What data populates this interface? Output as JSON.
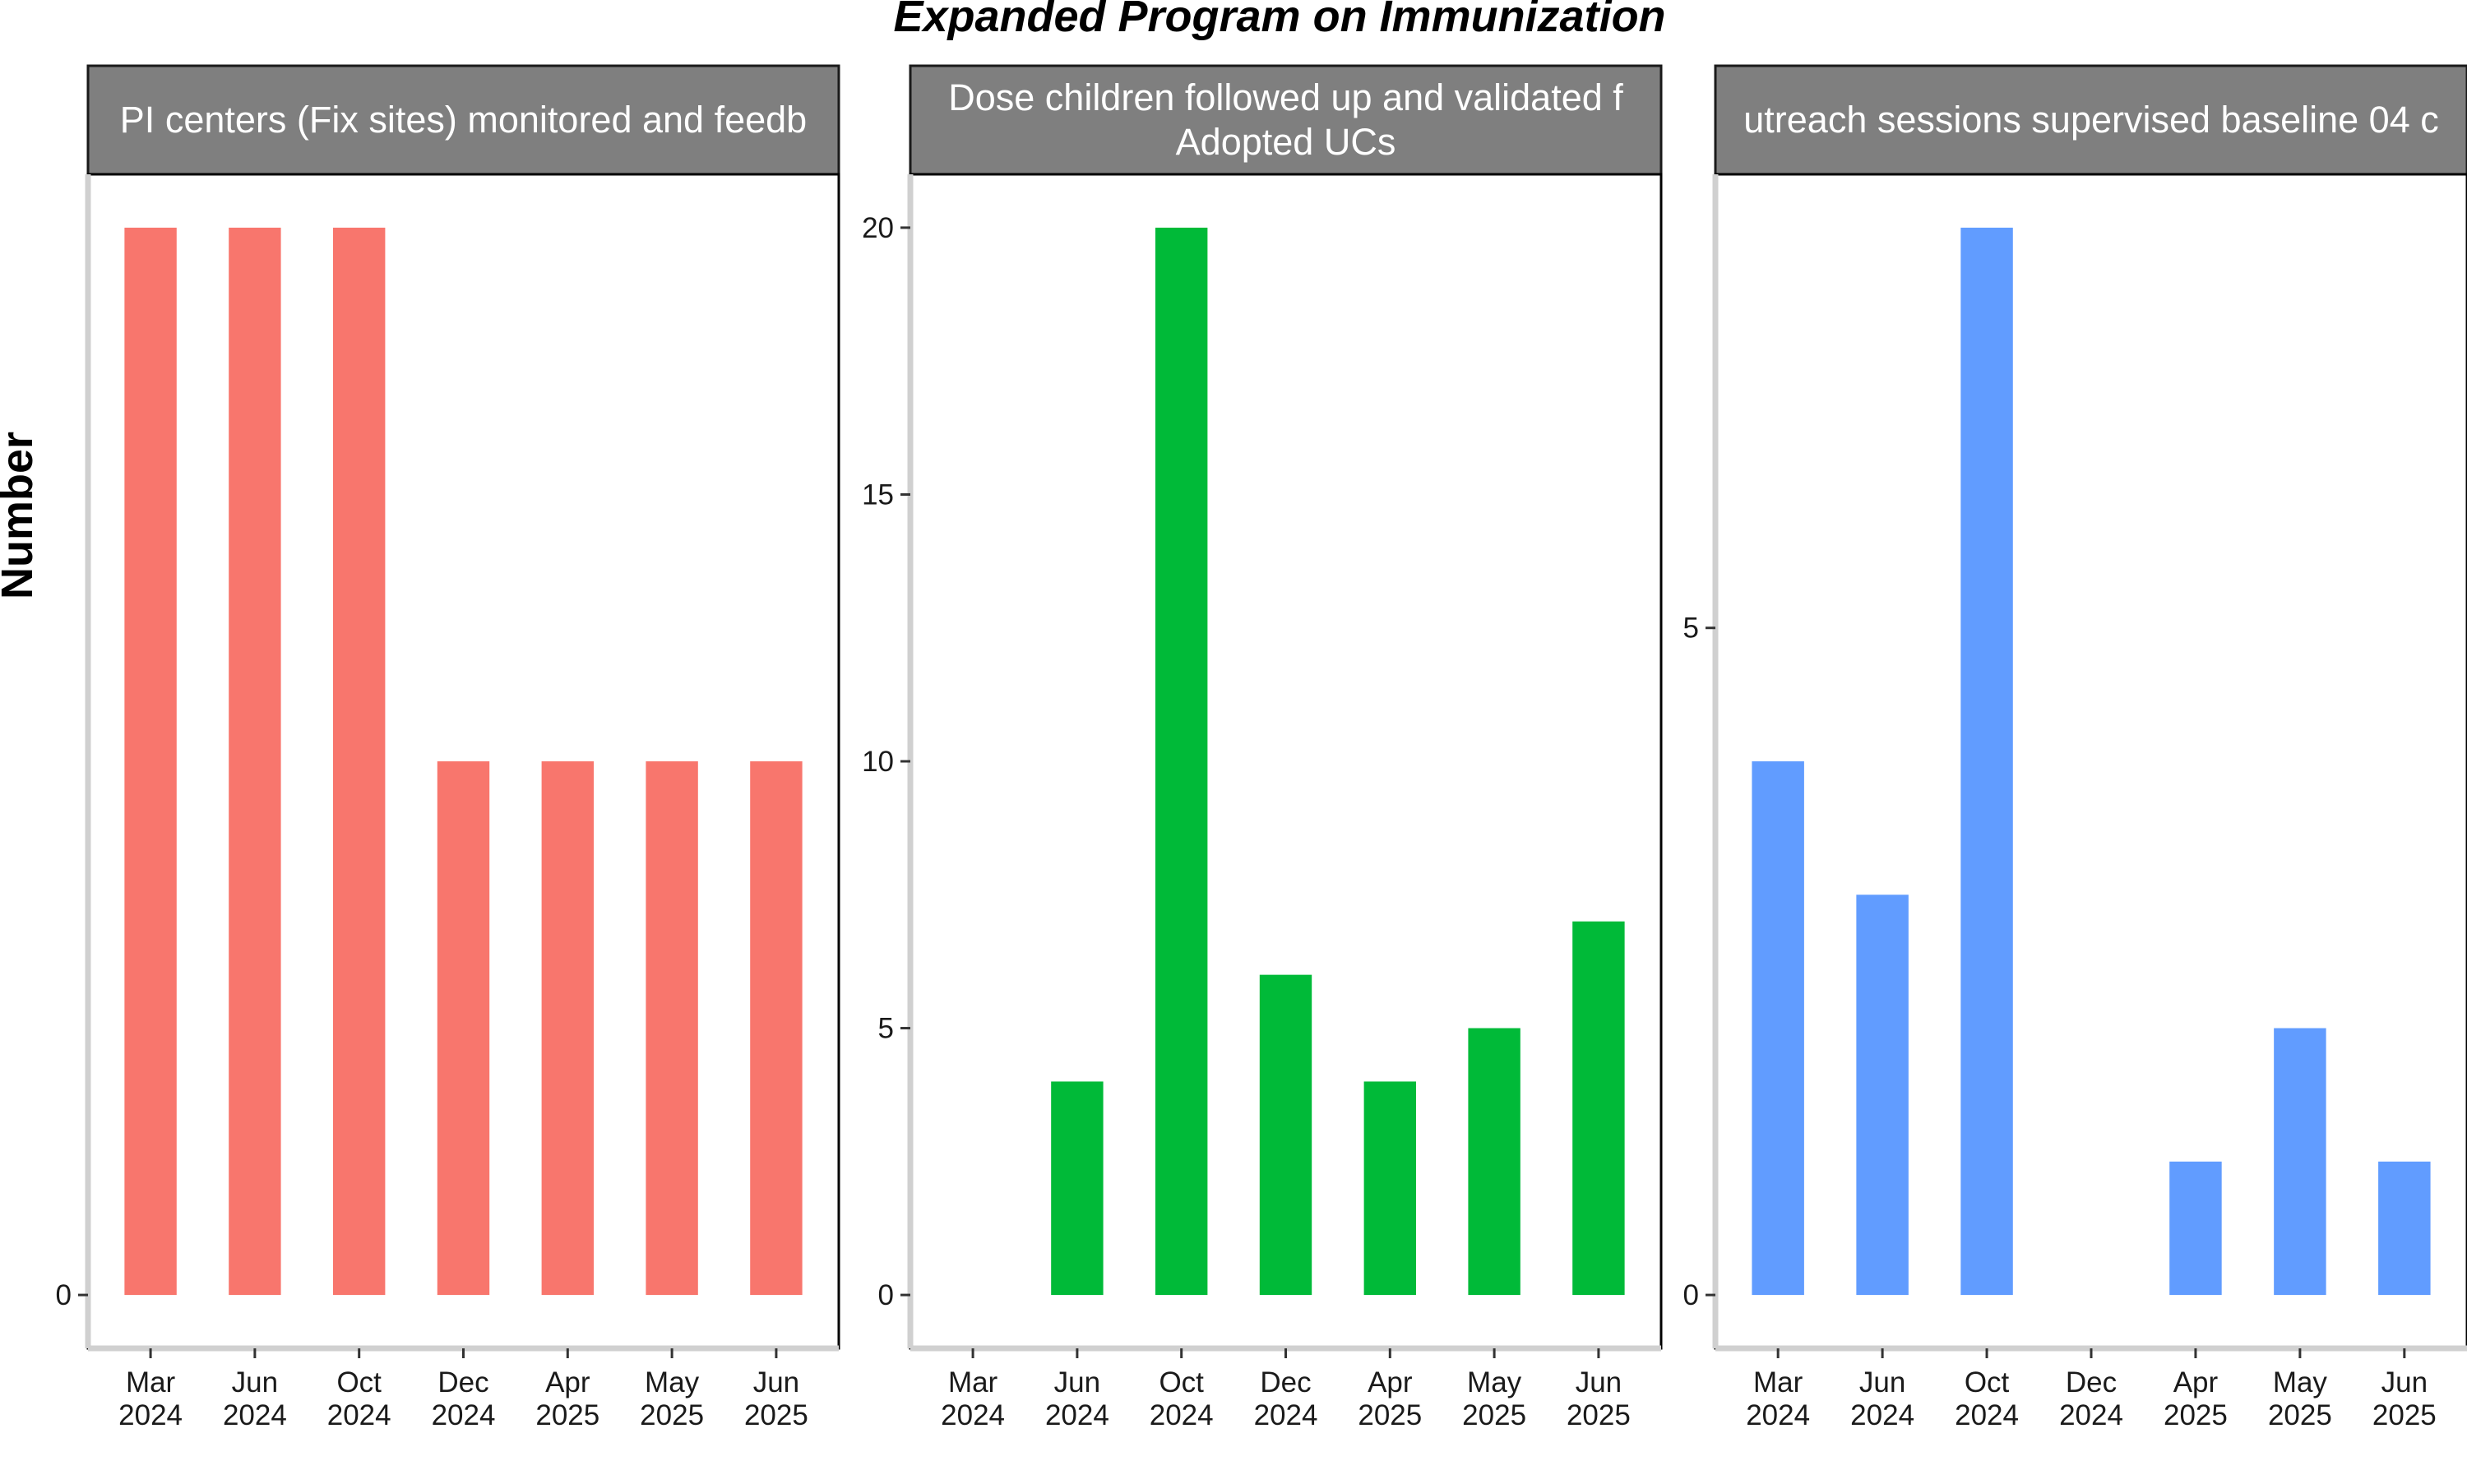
{
  "chart_data": {
    "type": "bar",
    "title": "Expanded Program on Immunization",
    "ylabel": "Number",
    "xlabel": "",
    "grid": false,
    "legend": "none",
    "categories": [
      [
        "Mar",
        "2024"
      ],
      [
        "Jun",
        "2024"
      ],
      [
        "Oct",
        "2024"
      ],
      [
        "Dec",
        "2024"
      ],
      [
        "Apr",
        "2025"
      ],
      [
        "May",
        "2025"
      ],
      [
        "Jun",
        "2025"
      ]
    ],
    "panels": [
      {
        "strip_lines": [
          "PI centers (Fix sites) monitored and feedb"
        ],
        "color": "#F8766D",
        "values": [
          1,
          1,
          1,
          0.5,
          0.5,
          0.5,
          0.5
        ],
        "ylim": [
          -0.05,
          1.05
        ],
        "yticks": [
          0
        ]
      },
      {
        "strip_lines": [
          "Dose children followed up and validated f",
          "Adopted UCs"
        ],
        "color": "#00BA38",
        "values": [
          0,
          4,
          20,
          6,
          4,
          5,
          7
        ],
        "ylim": [
          -1,
          21
        ],
        "yticks": [
          0,
          5,
          10,
          15,
          20
        ]
      },
      {
        "strip_lines": [
          "utreach sessions supervised baseline 04 c"
        ],
        "color": "#619CFF",
        "values": [
          4,
          3,
          8,
          0,
          1,
          2,
          1
        ],
        "ylim": [
          -0.4,
          8.4
        ],
        "yticks": [
          0,
          5
        ]
      }
    ]
  }
}
